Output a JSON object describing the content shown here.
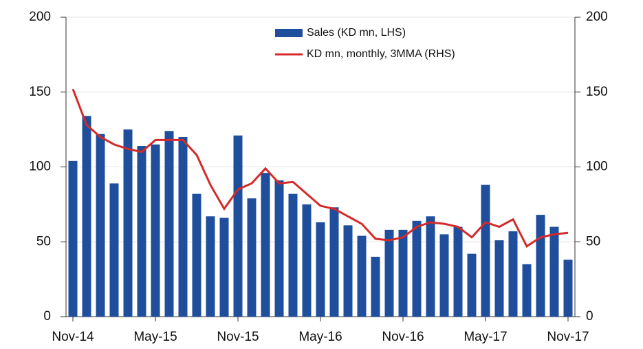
{
  "chart_data": {
    "type": "bar_line",
    "categories": [
      "Nov-14",
      null,
      null,
      null,
      null,
      null,
      "May-15",
      null,
      null,
      null,
      null,
      null,
      "Nov-15",
      null,
      null,
      null,
      null,
      null,
      "May-16",
      null,
      null,
      null,
      null,
      null,
      "Nov-16",
      null,
      null,
      null,
      null,
      null,
      "May-17",
      null,
      null,
      null,
      null,
      null,
      "Nov-17"
    ],
    "series": [
      {
        "name": "Sales (KD mn, LHS)",
        "type": "bar",
        "color": "#1f4e9c",
        "axis": "y",
        "values": [
          104,
          134,
          122,
          89,
          125,
          114,
          115,
          124,
          120,
          82,
          67,
          66,
          121,
          79,
          96,
          91,
          82,
          75,
          63,
          73,
          61,
          54,
          40,
          58,
          58,
          64,
          67,
          55,
          60,
          42,
          88,
          51,
          57,
          35,
          68,
          60,
          38
        ]
      },
      {
        "name": "KD mn, monthly, 3MMA (RHS)",
        "type": "line",
        "color": "#d42a2a",
        "axis": "y2",
        "values": [
          152,
          128,
          120,
          115,
          112,
          110,
          118,
          118,
          118,
          108,
          88,
          72,
          85,
          89,
          99,
          89,
          90,
          82,
          74,
          72,
          67,
          62,
          52,
          51,
          53,
          60,
          63,
          62,
          60,
          53,
          63,
          60,
          65,
          47,
          53,
          55,
          56
        ]
      }
    ],
    "ylim": [
      0,
      200
    ],
    "yticks": [
      0,
      50,
      100,
      150,
      200
    ],
    "y2lim": [
      0,
      200
    ],
    "y2ticks": [
      0,
      50,
      100,
      150,
      200
    ],
    "grid": true,
    "legend": "top"
  }
}
